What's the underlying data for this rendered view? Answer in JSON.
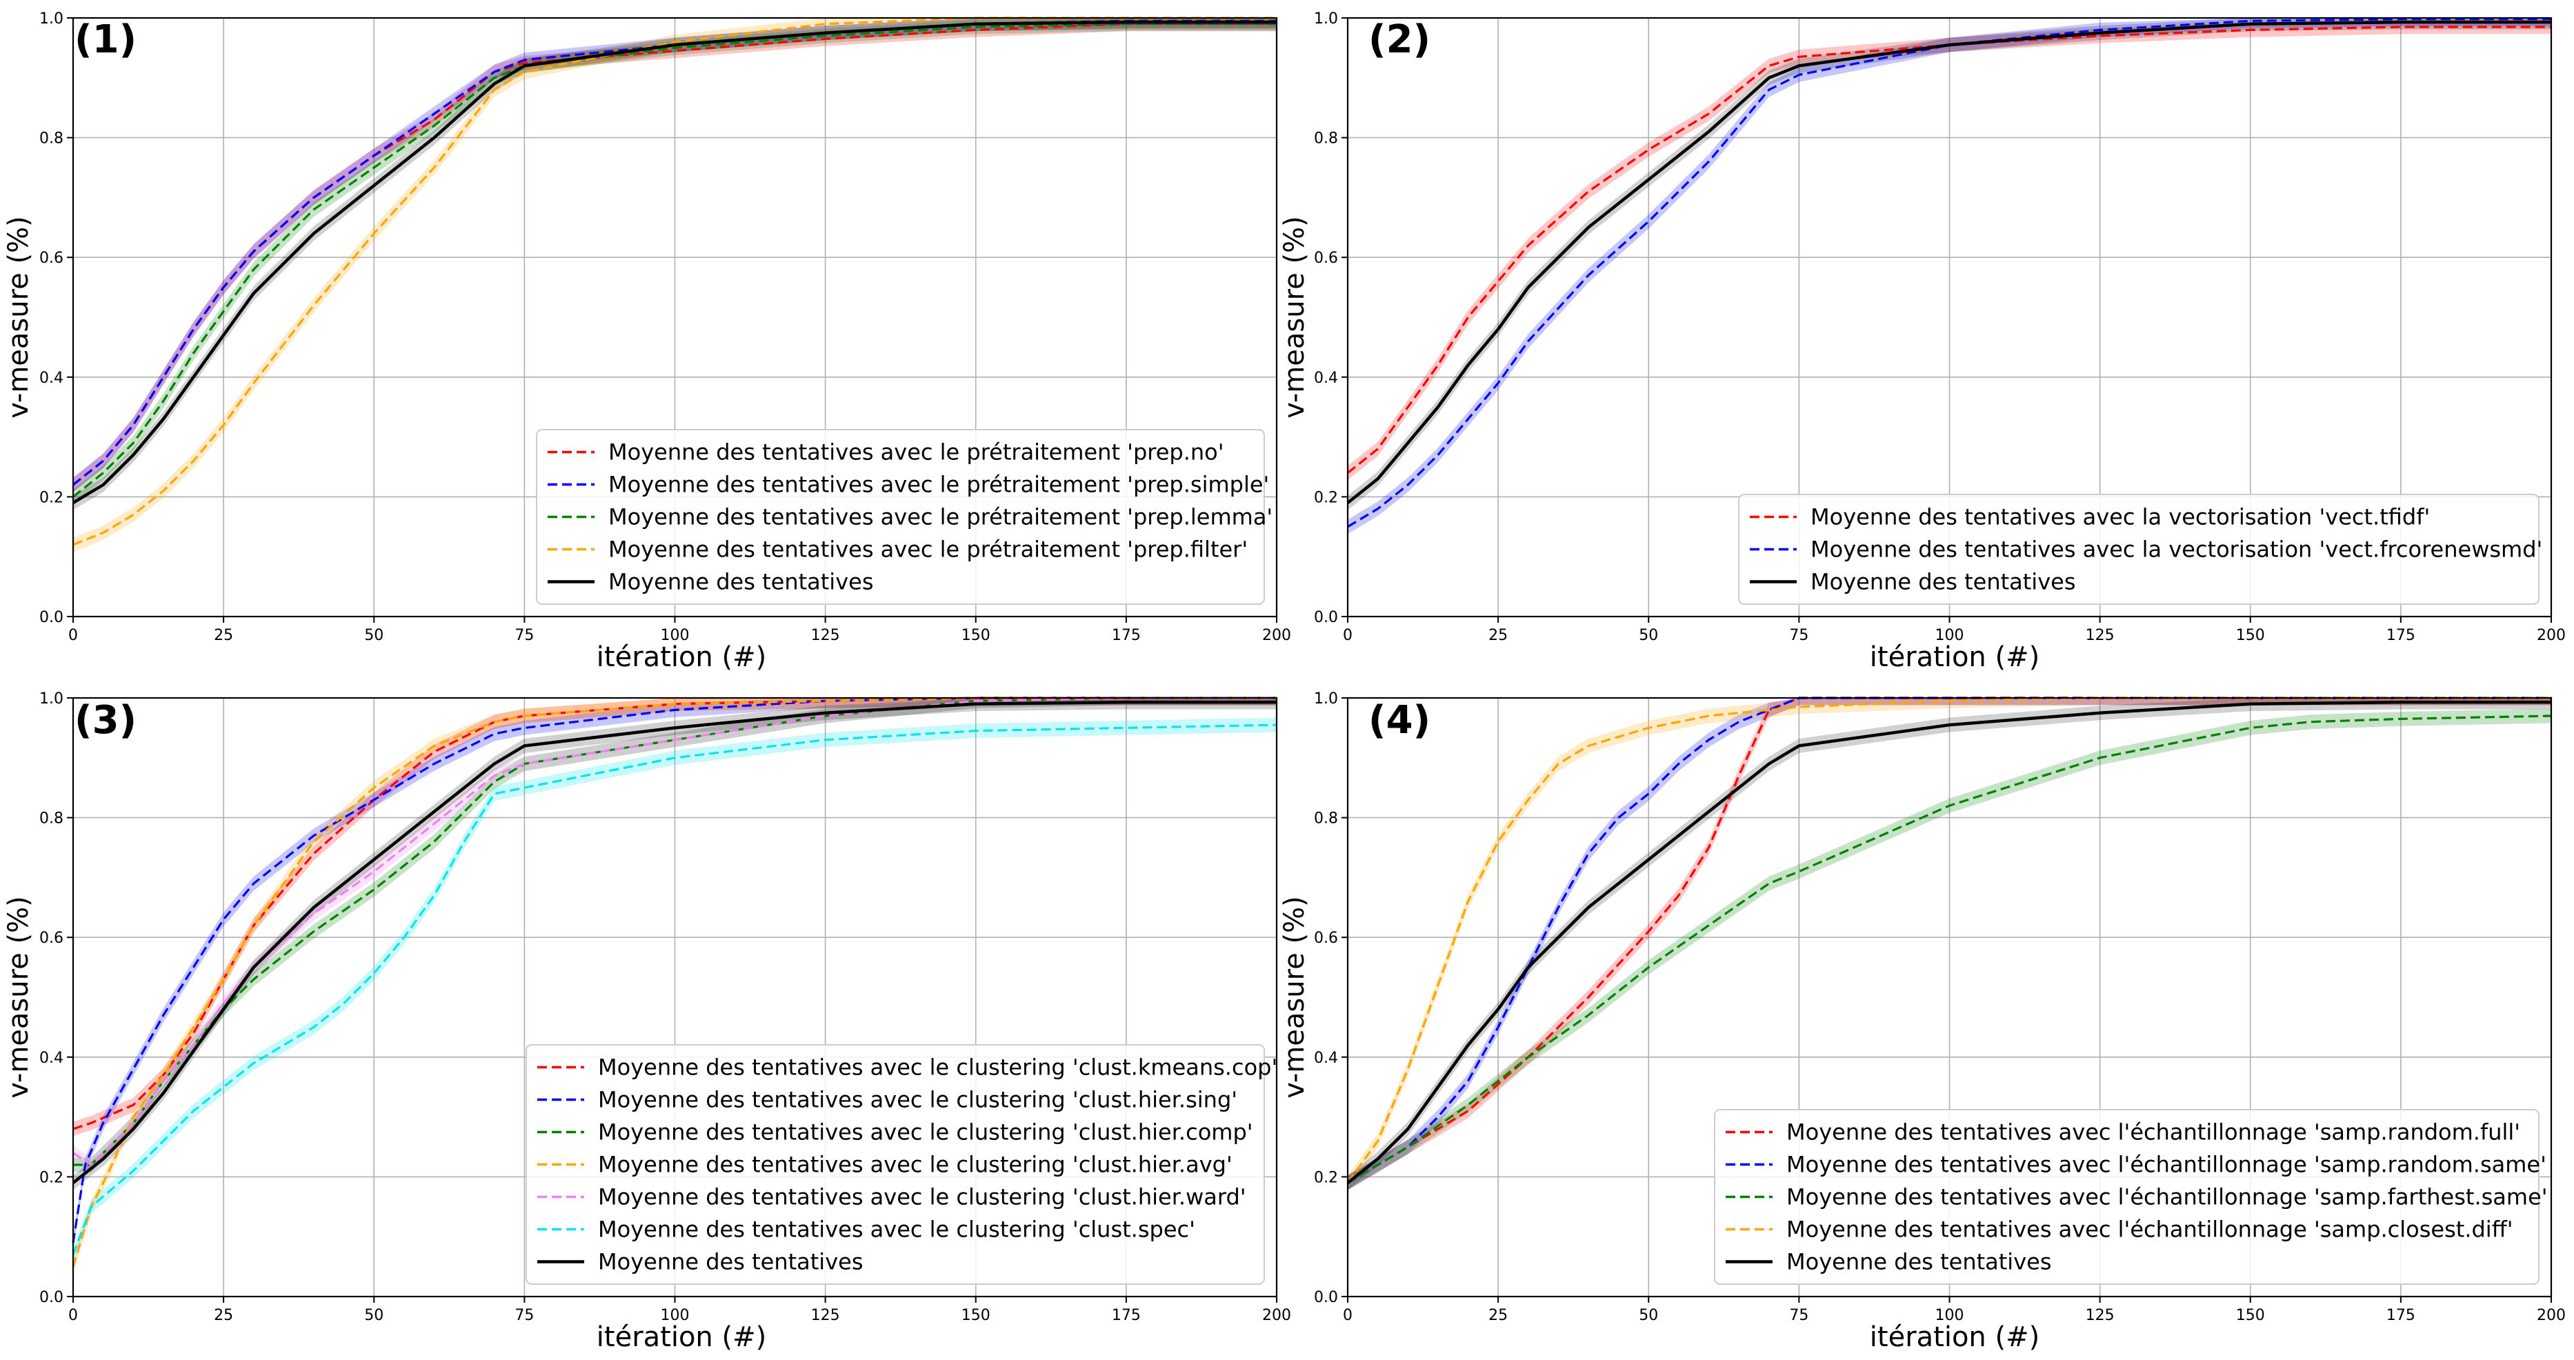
{
  "chart_data": [
    {
      "type": "line",
      "panel_label": "(1)",
      "xlabel": "itération (#)",
      "ylabel": "v-measure (%)",
      "xlim": [
        0,
        200
      ],
      "ylim": [
        0,
        1
      ],
      "xticks": [
        0,
        25,
        50,
        75,
        100,
        125,
        150,
        175,
        200
      ],
      "yticks": [
        0.0,
        0.2,
        0.4,
        0.6,
        0.8,
        1.0
      ],
      "grid": true,
      "legend_position": "lower-right",
      "series": [
        {
          "name": "Moyenne des tentatives avec le prétraitement 'prep.no'",
          "color": "#ff0000",
          "dash": true,
          "x": [
            0,
            5,
            10,
            15,
            20,
            25,
            30,
            40,
            50,
            60,
            70,
            75,
            100,
            125,
            150,
            175,
            200
          ],
          "y": [
            0.22,
            0.26,
            0.32,
            0.4,
            0.48,
            0.55,
            0.61,
            0.7,
            0.77,
            0.83,
            0.91,
            0.925,
            0.945,
            0.965,
            0.98,
            0.99,
            0.99
          ]
        },
        {
          "name": "Moyenne des tentatives avec le prétraitement 'prep.simple'",
          "color": "#0000ff",
          "dash": true,
          "x": [
            0,
            5,
            10,
            15,
            20,
            25,
            30,
            40,
            50,
            60,
            70,
            75,
            100,
            125,
            150,
            175,
            200
          ],
          "y": [
            0.22,
            0.26,
            0.32,
            0.4,
            0.48,
            0.55,
            0.61,
            0.7,
            0.77,
            0.84,
            0.91,
            0.93,
            0.955,
            0.975,
            0.99,
            0.995,
            0.995
          ]
        },
        {
          "name": "Moyenne des tentatives avec le prétraitement 'prep.lemma'",
          "color": "#008000",
          "dash": true,
          "x": [
            0,
            5,
            10,
            15,
            20,
            25,
            30,
            40,
            50,
            60,
            70,
            75,
            100,
            125,
            150,
            175,
            200
          ],
          "y": [
            0.2,
            0.24,
            0.29,
            0.36,
            0.44,
            0.51,
            0.58,
            0.68,
            0.75,
            0.82,
            0.9,
            0.92,
            0.95,
            0.97,
            0.985,
            0.99,
            0.99
          ]
        },
        {
          "name": "Moyenne des tentatives avec le prétraitement 'prep.filter'",
          "color": "#ffa500",
          "dash": true,
          "x": [
            0,
            5,
            10,
            15,
            20,
            25,
            30,
            40,
            50,
            60,
            70,
            75,
            100,
            125,
            150,
            175,
            200
          ],
          "y": [
            0.12,
            0.14,
            0.17,
            0.21,
            0.26,
            0.32,
            0.39,
            0.52,
            0.64,
            0.75,
            0.88,
            0.91,
            0.96,
            0.99,
            1.0,
            1.0,
            1.0
          ]
        },
        {
          "name": "Moyenne des tentatives",
          "color": "#000000",
          "dash": false,
          "x": [
            0,
            5,
            10,
            15,
            20,
            25,
            30,
            40,
            50,
            60,
            70,
            75,
            100,
            125,
            150,
            175,
            200
          ],
          "y": [
            0.19,
            0.22,
            0.27,
            0.33,
            0.4,
            0.47,
            0.54,
            0.64,
            0.72,
            0.8,
            0.89,
            0.92,
            0.955,
            0.975,
            0.99,
            0.993,
            0.993
          ]
        }
      ]
    },
    {
      "type": "line",
      "panel_label": "(2)",
      "xlabel": "itération (#)",
      "ylabel": "v-measure (%)",
      "xlim": [
        0,
        200
      ],
      "ylim": [
        0,
        1
      ],
      "xticks": [
        0,
        25,
        50,
        75,
        100,
        125,
        150,
        175,
        200
      ],
      "yticks": [
        0.0,
        0.2,
        0.4,
        0.6,
        0.8,
        1.0
      ],
      "grid": true,
      "legend_position": "lower-right",
      "series": [
        {
          "name": "Moyenne des tentatives avec la vectorisation 'vect.tfidf'",
          "color": "#ff0000",
          "dash": true,
          "x": [
            0,
            5,
            10,
            15,
            20,
            25,
            30,
            40,
            50,
            60,
            70,
            75,
            100,
            125,
            150,
            175,
            200
          ],
          "y": [
            0.24,
            0.28,
            0.35,
            0.42,
            0.5,
            0.56,
            0.62,
            0.71,
            0.78,
            0.84,
            0.92,
            0.935,
            0.955,
            0.97,
            0.98,
            0.985,
            0.985
          ]
        },
        {
          "name": "Moyenne des tentatives avec la vectorisation 'vect.frcorenewsmd'",
          "color": "#0000ff",
          "dash": true,
          "x": [
            0,
            5,
            10,
            15,
            20,
            25,
            30,
            40,
            50,
            60,
            70,
            75,
            100,
            125,
            150,
            175,
            200
          ],
          "y": [
            0.15,
            0.18,
            0.22,
            0.27,
            0.33,
            0.39,
            0.46,
            0.57,
            0.66,
            0.76,
            0.88,
            0.905,
            0.955,
            0.98,
            0.995,
            0.998,
            0.998
          ]
        },
        {
          "name": "Moyenne des tentatives",
          "color": "#000000",
          "dash": false,
          "x": [
            0,
            5,
            10,
            15,
            20,
            25,
            30,
            40,
            50,
            60,
            70,
            75,
            100,
            125,
            150,
            175,
            200
          ],
          "y": [
            0.19,
            0.23,
            0.29,
            0.35,
            0.42,
            0.48,
            0.55,
            0.65,
            0.73,
            0.81,
            0.9,
            0.92,
            0.955,
            0.975,
            0.99,
            0.993,
            0.993
          ]
        }
      ]
    },
    {
      "type": "line",
      "panel_label": "(3)",
      "xlabel": "itération (#)",
      "ylabel": "v-measure (%)",
      "xlim": [
        0,
        200
      ],
      "ylim": [
        0,
        1
      ],
      "xticks": [
        0,
        25,
        50,
        75,
        100,
        125,
        150,
        175,
        200
      ],
      "yticks": [
        0.0,
        0.2,
        0.4,
        0.6,
        0.8,
        1.0
      ],
      "grid": true,
      "legend_position": "lower-right",
      "series": [
        {
          "name": "Moyenne des tentatives avec le clustering 'clust.kmeans.cop'",
          "color": "#ff0000",
          "dash": true,
          "x": [
            0,
            3,
            10,
            15,
            20,
            25,
            30,
            40,
            50,
            60,
            70,
            75,
            100,
            125,
            150,
            175,
            200
          ],
          "y": [
            0.28,
            0.29,
            0.32,
            0.37,
            0.44,
            0.53,
            0.62,
            0.74,
            0.83,
            0.91,
            0.96,
            0.97,
            0.99,
            0.995,
            1.0,
            1.0,
            1.0
          ]
        },
        {
          "name": "Moyenne des tentatives avec le clustering 'clust.hier.sing'",
          "color": "#0000ff",
          "dash": true,
          "x": [
            0,
            2,
            5,
            10,
            15,
            20,
            25,
            30,
            40,
            50,
            60,
            70,
            75,
            100,
            125,
            150,
            175,
            200
          ],
          "y": [
            0.09,
            0.22,
            0.29,
            0.38,
            0.47,
            0.55,
            0.63,
            0.69,
            0.77,
            0.83,
            0.89,
            0.94,
            0.95,
            0.98,
            0.995,
            1.0,
            1.0,
            1.0
          ]
        },
        {
          "name": "Moyenne des tentatives avec le clustering 'clust.hier.comp'",
          "color": "#008000",
          "dash": true,
          "x": [
            0,
            3,
            10,
            15,
            20,
            25,
            30,
            40,
            50,
            60,
            70,
            75,
            100,
            125,
            150,
            175,
            200
          ],
          "y": [
            0.22,
            0.22,
            0.29,
            0.36,
            0.42,
            0.48,
            0.53,
            0.61,
            0.68,
            0.76,
            0.86,
            0.89,
            0.93,
            0.97,
            0.995,
            1.0,
            1.0
          ]
        },
        {
          "name": "Moyenne des tentatives avec le clustering 'clust.hier.avg'",
          "color": "#ffa500",
          "dash": true,
          "x": [
            0,
            3,
            6,
            10,
            15,
            20,
            25,
            30,
            40,
            50,
            60,
            70,
            75,
            100,
            125,
            150,
            175,
            200
          ],
          "y": [
            0.05,
            0.15,
            0.21,
            0.3,
            0.37,
            0.45,
            0.53,
            0.62,
            0.76,
            0.85,
            0.92,
            0.96,
            0.97,
            0.99,
            0.995,
            1.0,
            1.0,
            1.0
          ]
        },
        {
          "name": "Moyenne des tentatives avec le clustering 'clust.hier.ward'",
          "color": "#ee82ee",
          "dash": true,
          "x": [
            0,
            3,
            10,
            15,
            20,
            25,
            30,
            40,
            50,
            60,
            70,
            75,
            100,
            125,
            150,
            175,
            200
          ],
          "y": [
            0.24,
            0.22,
            0.29,
            0.36,
            0.42,
            0.49,
            0.55,
            0.64,
            0.71,
            0.79,
            0.87,
            0.89,
            0.93,
            0.97,
            0.995,
            1.0,
            1.0
          ]
        },
        {
          "name": "Moyenne des tentatives avec le clustering 'clust.spec'",
          "color": "#00e5ee",
          "dash": true,
          "x": [
            0,
            3,
            10,
            15,
            20,
            25,
            30,
            35,
            40,
            45,
            50,
            55,
            60,
            65,
            70,
            75,
            100,
            125,
            150,
            175,
            200
          ],
          "y": [
            0.07,
            0.15,
            0.21,
            0.26,
            0.31,
            0.35,
            0.39,
            0.42,
            0.45,
            0.49,
            0.54,
            0.6,
            0.67,
            0.76,
            0.84,
            0.85,
            0.9,
            0.93,
            0.945,
            0.95,
            0.955
          ]
        },
        {
          "name": "Moyenne des tentatives",
          "color": "#000000",
          "dash": false,
          "x": [
            0,
            5,
            10,
            15,
            20,
            25,
            30,
            40,
            50,
            60,
            70,
            75,
            100,
            125,
            150,
            175,
            200
          ],
          "y": [
            0.19,
            0.23,
            0.28,
            0.34,
            0.41,
            0.48,
            0.55,
            0.65,
            0.73,
            0.81,
            0.89,
            0.92,
            0.95,
            0.975,
            0.99,
            0.993,
            0.993
          ]
        }
      ]
    },
    {
      "type": "line",
      "panel_label": "(4)",
      "xlabel": "itération (#)",
      "ylabel": "v-measure (%)",
      "xlim": [
        0,
        200
      ],
      "ylim": [
        0,
        1
      ],
      "xticks": [
        0,
        25,
        50,
        75,
        100,
        125,
        150,
        175,
        200
      ],
      "yticks": [
        0.0,
        0.2,
        0.4,
        0.6,
        0.8,
        1.0
      ],
      "grid": true,
      "legend_position": "lower-right",
      "series": [
        {
          "name": "Moyenne des tentatives avec l'échantillonnage 'samp.random.full'",
          "color": "#ff0000",
          "dash": true,
          "x": [
            0,
            10,
            20,
            30,
            40,
            50,
            55,
            60,
            65,
            70,
            75,
            100,
            125,
            150,
            175,
            200
          ],
          "y": [
            0.19,
            0.25,
            0.31,
            0.4,
            0.5,
            0.61,
            0.67,
            0.75,
            0.87,
            0.98,
            1.0,
            1.0,
            1.0,
            1.0,
            1.0,
            1.0
          ]
        },
        {
          "name": "Moyenne des tentatives avec l'échantillonnage 'samp.random.same'",
          "color": "#0000ff",
          "dash": true,
          "x": [
            0,
            10,
            15,
            20,
            25,
            30,
            35,
            40,
            45,
            50,
            55,
            60,
            65,
            70,
            75,
            100,
            125,
            150,
            175,
            200
          ],
          "y": [
            0.19,
            0.25,
            0.3,
            0.36,
            0.45,
            0.55,
            0.65,
            0.74,
            0.8,
            0.84,
            0.89,
            0.93,
            0.96,
            0.98,
            1.0,
            1.0,
            1.0,
            1.0,
            1.0,
            1.0
          ]
        },
        {
          "name": "Moyenne des tentatives avec l'échantillonnage 'samp.farthest.same'",
          "color": "#008000",
          "dash": true,
          "x": [
            0,
            10,
            20,
            30,
            40,
            50,
            60,
            70,
            75,
            100,
            125,
            150,
            160,
            175,
            200
          ],
          "y": [
            0.19,
            0.25,
            0.32,
            0.4,
            0.47,
            0.55,
            0.62,
            0.69,
            0.71,
            0.82,
            0.9,
            0.95,
            0.96,
            0.965,
            0.97
          ]
        },
        {
          "name": "Moyenne des tentatives avec l'échantillonnage 'samp.closest.diff'",
          "color": "#ffa500",
          "dash": true,
          "x": [
            0,
            5,
            10,
            15,
            20,
            25,
            30,
            35,
            40,
            50,
            60,
            75,
            100,
            125,
            150,
            175,
            200
          ],
          "y": [
            0.19,
            0.26,
            0.38,
            0.52,
            0.66,
            0.76,
            0.83,
            0.89,
            0.92,
            0.95,
            0.97,
            0.985,
            0.995,
            1.0,
            1.0,
            1.0,
            1.0
          ]
        },
        {
          "name": "Moyenne des tentatives",
          "color": "#000000",
          "dash": false,
          "x": [
            0,
            5,
            10,
            15,
            20,
            25,
            30,
            40,
            50,
            60,
            70,
            75,
            100,
            125,
            150,
            175,
            200
          ],
          "y": [
            0.19,
            0.23,
            0.28,
            0.35,
            0.42,
            0.48,
            0.55,
            0.65,
            0.73,
            0.81,
            0.89,
            0.92,
            0.955,
            0.975,
            0.99,
            0.993,
            0.993
          ]
        }
      ]
    }
  ]
}
